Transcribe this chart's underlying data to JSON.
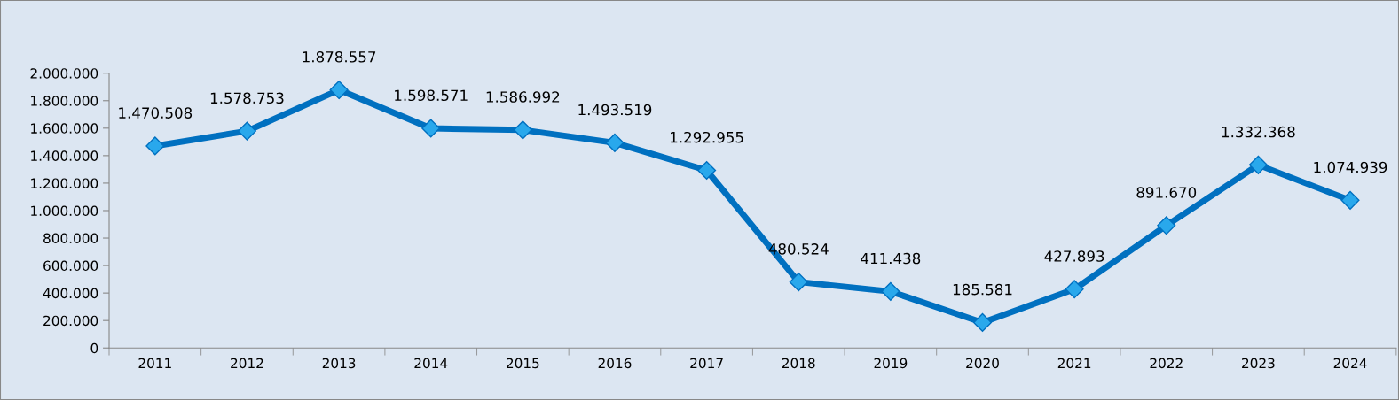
{
  "chart_data": {
    "type": "line",
    "categories": [
      "2011",
      "2012",
      "2013",
      "2014",
      "2015",
      "2016",
      "2017",
      "2018",
      "2019",
      "2020",
      "2021",
      "2022",
      "2023",
      "2024"
    ],
    "series": [
      {
        "color": "#0070c0",
        "values": [
          1470508,
          1578753,
          1878557,
          1598571,
          1586992,
          1493519,
          1292955,
          480524,
          411438,
          185581,
          427893,
          891670,
          1332368,
          1074939
        ],
        "value_labels": [
          "1.470.508",
          "1.578.753",
          "1.878.557",
          "1.598.571",
          "1.586.992",
          "1.493.519",
          "1.292.955",
          "480.524",
          "411.438",
          "185.581",
          "427.893",
          "891.670",
          "1.332.368",
          "1.074.939"
        ]
      }
    ],
    "ylim": [
      0,
      2000000
    ],
    "yticks": [
      0,
      {
        "value": 200000,
        "label": "200.000"
      },
      {
        "value": 400000,
        "label": "400.000"
      },
      {
        "value": 600000,
        "label": "600.000"
      },
      {
        "value": 800000,
        "label": "800.000"
      },
      {
        "value": 1000000,
        "label": "1.000.000"
      },
      {
        "value": 1200000,
        "label": "1.200.000"
      },
      {
        "value": 1400000,
        "label": "1.400.000"
      },
      {
        "value": 1600000,
        "label": "1.600.000"
      },
      {
        "value": 1800000,
        "label": "1.800.000"
      },
      {
        "value": 2000000,
        "label": "2.000.000"
      }
    ],
    "marker": "diamond",
    "line_style": "solid"
  }
}
